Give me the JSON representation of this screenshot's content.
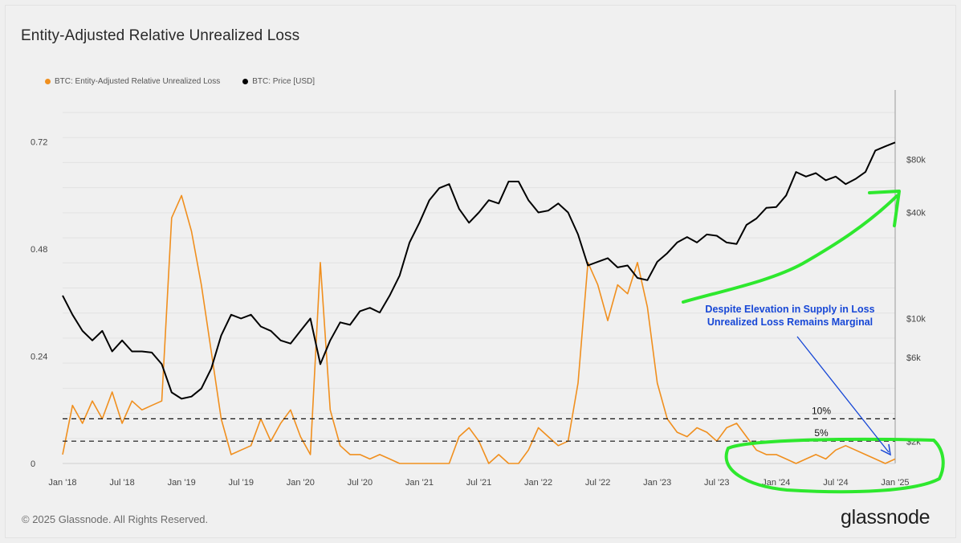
{
  "header": {
    "title": "Entity-Adjusted Relative Unrealized Loss"
  },
  "legend": [
    {
      "label": "BTC: Entity-Adjusted Relative Unrealized Loss",
      "color": "#f08f1e"
    },
    {
      "label": "BTC: Price [USD]",
      "color": "#000000"
    }
  ],
  "footer": {
    "copyright": "© 2025 Glassnode. All Rights Reserved.",
    "brand": "glassnode"
  },
  "chart_data": {
    "type": "line",
    "title": "Entity-Adjusted Relative Unrealized Loss",
    "x_ticks": [
      "Jan '18",
      "Jul '18",
      "Jan '19",
      "Jul '19",
      "Jan '20",
      "Jul '20",
      "Jan '21",
      "Jul '21",
      "Jan '22",
      "Jul '22",
      "Jan '23",
      "Jul '23",
      "Jan '24",
      "Jul '24",
      "Jan '25"
    ],
    "x_range": [
      "2018-01",
      "2025-01"
    ],
    "y_left": {
      "label": "",
      "ticks": [
        "0",
        "0.24",
        "0.48",
        "0.72"
      ],
      "range": [
        0,
        0.75
      ]
    },
    "y_right": {
      "label": "",
      "scale": "log",
      "ticks": [
        "$2k",
        "$6k",
        "$10k",
        "$40k",
        "$80k"
      ],
      "range": [
        1500,
        120000
      ]
    },
    "grid": true,
    "reference_lines": [
      {
        "axis": "left",
        "value": 0.1,
        "label": "10%",
        "style": "dashed"
      },
      {
        "axis": "left",
        "value": 0.05,
        "label": "5%",
        "style": "dashed"
      }
    ],
    "series": [
      {
        "name": "BTC: Entity-Adjusted Relative Unrealized Loss",
        "axis": "left",
        "color": "#f08f1e",
        "x": [
          "2018-01",
          "2018-02",
          "2018-03",
          "2018-04",
          "2018-05",
          "2018-06",
          "2018-07",
          "2018-08",
          "2018-09",
          "2018-10",
          "2018-11",
          "2018-12",
          "2019-01",
          "2019-02",
          "2019-03",
          "2019-04",
          "2019-05",
          "2019-06",
          "2019-07",
          "2019-08",
          "2019-09",
          "2019-10",
          "2019-11",
          "2019-12",
          "2020-01",
          "2020-02",
          "2020-03",
          "2020-04",
          "2020-05",
          "2020-06",
          "2020-07",
          "2020-08",
          "2020-09",
          "2020-10",
          "2020-11",
          "2020-12",
          "2021-01",
          "2021-02",
          "2021-03",
          "2021-04",
          "2021-05",
          "2021-06",
          "2021-07",
          "2021-08",
          "2021-09",
          "2021-10",
          "2021-11",
          "2021-12",
          "2022-01",
          "2022-02",
          "2022-03",
          "2022-04",
          "2022-05",
          "2022-06",
          "2022-07",
          "2022-08",
          "2022-09",
          "2022-10",
          "2022-11",
          "2022-12",
          "2023-01",
          "2023-02",
          "2023-03",
          "2023-04",
          "2023-05",
          "2023-06",
          "2023-07",
          "2023-08",
          "2023-09",
          "2023-10",
          "2023-11",
          "2023-12",
          "2024-01",
          "2024-02",
          "2024-03",
          "2024-04",
          "2024-05",
          "2024-06",
          "2024-07",
          "2024-08",
          "2024-09",
          "2024-10",
          "2024-11",
          "2024-12",
          "2025-01"
        ],
        "values": [
          0.02,
          0.13,
          0.09,
          0.14,
          0.1,
          0.16,
          0.09,
          0.14,
          0.12,
          0.13,
          0.14,
          0.55,
          0.6,
          0.52,
          0.4,
          0.25,
          0.1,
          0.02,
          0.03,
          0.04,
          0.1,
          0.05,
          0.09,
          0.12,
          0.06,
          0.02,
          0.45,
          0.12,
          0.04,
          0.02,
          0.02,
          0.01,
          0.02,
          0.01,
          0.0,
          0.0,
          0.0,
          0.0,
          0.0,
          0.0,
          0.06,
          0.08,
          0.05,
          0.0,
          0.02,
          0.0,
          0.0,
          0.03,
          0.08,
          0.06,
          0.04,
          0.05,
          0.18,
          0.45,
          0.4,
          0.32,
          0.4,
          0.38,
          0.45,
          0.35,
          0.18,
          0.1,
          0.07,
          0.06,
          0.08,
          0.07,
          0.05,
          0.08,
          0.09,
          0.06,
          0.03,
          0.02,
          0.02,
          0.01,
          0.0,
          0.01,
          0.02,
          0.01,
          0.03,
          0.04,
          0.03,
          0.02,
          0.01,
          0.0,
          0.01
        ]
      },
      {
        "name": "BTC: Price [USD]",
        "axis": "right",
        "color": "#000000",
        "x": [
          "2018-01",
          "2018-02",
          "2018-03",
          "2018-04",
          "2018-05",
          "2018-06",
          "2018-07",
          "2018-08",
          "2018-09",
          "2018-10",
          "2018-11",
          "2018-12",
          "2019-01",
          "2019-02",
          "2019-03",
          "2019-04",
          "2019-05",
          "2019-06",
          "2019-07",
          "2019-08",
          "2019-09",
          "2019-10",
          "2019-11",
          "2019-12",
          "2020-01",
          "2020-02",
          "2020-03",
          "2020-04",
          "2020-05",
          "2020-06",
          "2020-07",
          "2020-08",
          "2020-09",
          "2020-10",
          "2020-11",
          "2020-12",
          "2021-01",
          "2021-02",
          "2021-03",
          "2021-04",
          "2021-05",
          "2021-06",
          "2021-07",
          "2021-08",
          "2021-09",
          "2021-10",
          "2021-11",
          "2021-12",
          "2022-01",
          "2022-02",
          "2022-03",
          "2022-04",
          "2022-05",
          "2022-06",
          "2022-07",
          "2022-08",
          "2022-09",
          "2022-10",
          "2022-11",
          "2022-12",
          "2023-01",
          "2023-02",
          "2023-03",
          "2023-04",
          "2023-05",
          "2023-06",
          "2023-07",
          "2023-08",
          "2023-09",
          "2023-10",
          "2023-11",
          "2023-12",
          "2024-01",
          "2024-02",
          "2024-03",
          "2024-04",
          "2024-05",
          "2024-06",
          "2024-07",
          "2024-08",
          "2024-09",
          "2024-10",
          "2024-11",
          "2024-12",
          "2025-01"
        ],
        "values": [
          13500,
          10500,
          8500,
          7500,
          8500,
          6500,
          7500,
          6500,
          6500,
          6400,
          5500,
          3800,
          3500,
          3600,
          4000,
          5200,
          8000,
          10500,
          10000,
          10500,
          9000,
          8500,
          7500,
          7200,
          8500,
          10000,
          5500,
          7500,
          9500,
          9200,
          11000,
          11500,
          10800,
          13500,
          17500,
          27000,
          35000,
          47000,
          55000,
          58000,
          42000,
          35000,
          40000,
          47000,
          45000,
          60000,
          60000,
          47000,
          40000,
          41000,
          45000,
          40000,
          30000,
          20000,
          21000,
          22000,
          19500,
          20000,
          17000,
          16500,
          21000,
          23500,
          27000,
          29000,
          27000,
          30000,
          29500,
          27000,
          26500,
          34000,
          37000,
          42500,
          43000,
          50000,
          68000,
          64000,
          67000,
          61000,
          64000,
          58000,
          62000,
          68000,
          90000,
          95000,
          100000
        ]
      }
    ],
    "annotations": [
      {
        "text": [
          "Despite Elevation in Supply in Loss",
          "Unrealized Loss Remains Marginal"
        ],
        "color": "#1747d6"
      }
    ],
    "highlight_color": "#2ee82e"
  }
}
